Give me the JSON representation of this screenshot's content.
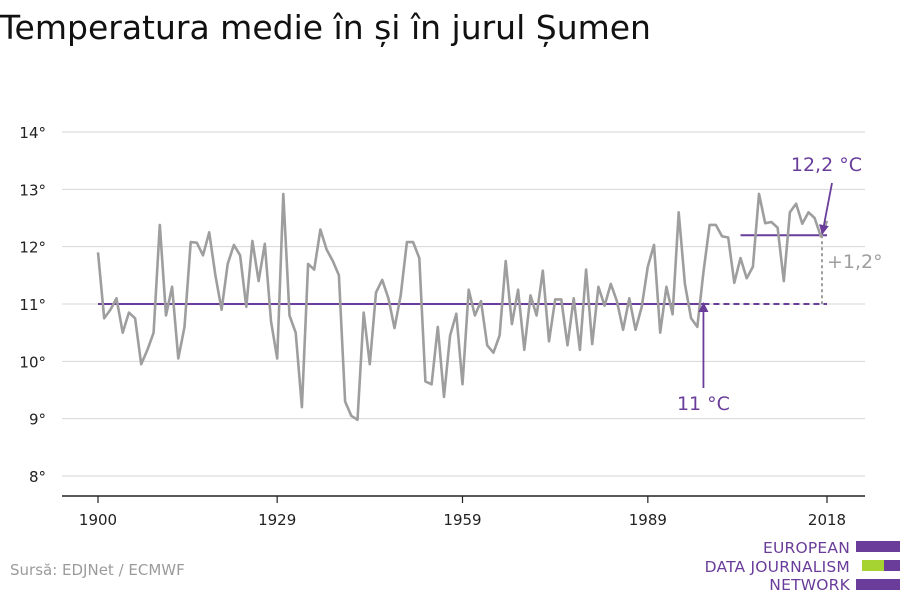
{
  "title": "Temperatura medie în și în jurul Șumen",
  "source": "Sursă: EDJNet / ECMWF",
  "logo": {
    "lines": [
      "EUROPEAN",
      "DATA JOURNALISM",
      "NETWORK"
    ]
  },
  "colors": {
    "series": "#9e9e9e",
    "accent": "#6a3d9a",
    "green": "#a6d332",
    "grid": "#d6d6d6",
    "axis": "#222222"
  },
  "chart_data": {
    "type": "line",
    "title": "Temperatura medie în și în jurul Șumen",
    "ylim": [
      8,
      14
    ],
    "xlim": [
      1900,
      2018
    ],
    "y_ticks": [
      8,
      9,
      10,
      11,
      12,
      13,
      14
    ],
    "y_tick_labels": [
      "8°",
      "9°",
      "10°",
      "11°",
      "12°",
      "13°",
      "14°"
    ],
    "x_ticks": [
      1900,
      1929,
      1959,
      1989,
      2018
    ],
    "x_tick_labels": [
      "1900",
      "1929",
      "1959",
      "1989",
      "2018"
    ],
    "grid": true,
    "x": [
      1900,
      1901,
      1902,
      1903,
      1904,
      1905,
      1906,
      1907,
      1908,
      1909,
      1910,
      1911,
      1912,
      1913,
      1914,
      1915,
      1916,
      1917,
      1918,
      1919,
      1920,
      1921,
      1922,
      1923,
      1924,
      1925,
      1926,
      1927,
      1928,
      1929,
      1930,
      1931,
      1932,
      1933,
      1934,
      1935,
      1936,
      1937,
      1938,
      1939,
      1940,
      1941,
      1942,
      1943,
      1944,
      1945,
      1946,
      1947,
      1948,
      1949,
      1950,
      1951,
      1952,
      1953,
      1954,
      1955,
      1956,
      1957,
      1958,
      1959,
      1960,
      1961,
      1962,
      1963,
      1964,
      1965,
      1966,
      1967,
      1968,
      1969,
      1970,
      1971,
      1972,
      1973,
      1974,
      1975,
      1976,
      1977,
      1978,
      1979,
      1980,
      1981,
      1982,
      1983,
      1984,
      1985,
      1986,
      1987,
      1988,
      1989,
      1990,
      1991,
      1992,
      1993,
      1994,
      1995,
      1996,
      1997,
      1998,
      1999,
      2000,
      2001,
      2002,
      2003,
      2004,
      2005,
      2006,
      2007,
      2008,
      2009,
      2010,
      2011,
      2012,
      2013,
      2014,
      2015,
      2016,
      2017,
      2018
    ],
    "series": [
      {
        "values": [
          11.9,
          10.75,
          10.9,
          11.1,
          10.5,
          10.85,
          10.75,
          9.95,
          10.2,
          10.5,
          12.38,
          10.8,
          11.3,
          10.05,
          10.6,
          12.08,
          12.07,
          11.85,
          12.25,
          11.5,
          10.9,
          11.7,
          12.03,
          11.85,
          10.95,
          12.1,
          11.4,
          12.05,
          10.7,
          10.05,
          12.92,
          10.8,
          10.5,
          9.2,
          11.7,
          11.6,
          12.3,
          11.95,
          11.75,
          11.5,
          9.3,
          9.05,
          8.98,
          10.85,
          9.95,
          11.2,
          11.42,
          11.1,
          10.58,
          11.15,
          12.08,
          12.08,
          11.8,
          9.65,
          9.6,
          10.6,
          9.38,
          10.45,
          10.83,
          9.6,
          11.25,
          10.8,
          11.05,
          10.28,
          10.15,
          10.45,
          11.75,
          10.65,
          11.25,
          10.2,
          11.15,
          10.8,
          11.58,
          10.35,
          11.08,
          11.08,
          10.28,
          11.1,
          10.2,
          11.6,
          10.3,
          11.3,
          10.97,
          11.35,
          11.05,
          10.55,
          11.1,
          10.55,
          10.95,
          11.65,
          12.03,
          10.5,
          11.3,
          10.82,
          12.6,
          11.35,
          10.75,
          10.6,
          11.55,
          12.38,
          12.38,
          12.18,
          12.16,
          11.37,
          11.8,
          11.45,
          11.65,
          12.92,
          12.41,
          12.43,
          12.33,
          11.4,
          12.6,
          12.75,
          12.4,
          12.6,
          12.5,
          12.18,
          12.45
        ]
      }
    ],
    "reference_lines": [
      {
        "value": 11,
        "x_start": 1900,
        "x_end": 1998,
        "style": "solid"
      },
      {
        "value": 11,
        "x_start": 1998,
        "x_end": 2018,
        "style": "dashed"
      },
      {
        "value": 12.2,
        "x_start": 2004,
        "x_end": 2018,
        "style": "solid"
      }
    ],
    "annotations": [
      {
        "text": "12,2 °C",
        "type": "recent-mean"
      },
      {
        "text": "11 °C",
        "type": "baseline-mean"
      },
      {
        "text": "+1,2°",
        "type": "difference"
      }
    ]
  }
}
